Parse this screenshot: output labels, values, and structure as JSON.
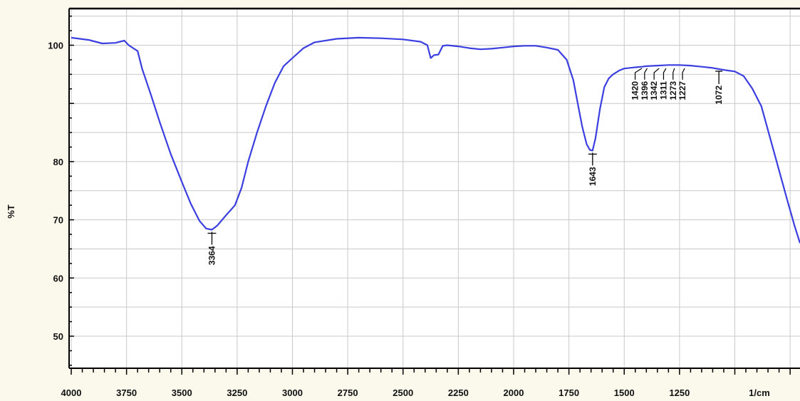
{
  "chart_data": {
    "type": "line",
    "title": "",
    "ylabel": "%T",
    "xunit_label": "1/cm",
    "xlim": [
      4000,
      700
    ],
    "ylim": [
      45,
      107
    ],
    "grid": true,
    "line_color": "#3b3fe0",
    "grid_color": "#c9c9c9",
    "x_ticks": [
      4000,
      3750,
      3500,
      3250,
      3000,
      2750,
      2500,
      2250,
      2000,
      1750,
      1500,
      1250
    ],
    "y_ticks": [
      100,
      80,
      70,
      60,
      50
    ],
    "series": [
      {
        "x": [
          4000,
          3920,
          3860,
          3800,
          3760,
          3740,
          3700,
          3680,
          3640,
          3600,
          3550,
          3500,
          3460,
          3420,
          3390,
          3364,
          3340,
          3300,
          3260,
          3230,
          3200,
          3160,
          3120,
          3080,
          3040,
          3000,
          2950,
          2900,
          2800,
          2700,
          2600,
          2500,
          2420,
          2390,
          2375,
          2360,
          2340,
          2320,
          2300,
          2250,
          2200,
          2150,
          2100,
          2050,
          2000,
          1950,
          1900,
          1850,
          1800,
          1760,
          1730,
          1710,
          1690,
          1670,
          1655,
          1643,
          1630,
          1610,
          1590,
          1570,
          1550,
          1520,
          1500,
          1450,
          1420,
          1400,
          1350,
          1300,
          1250,
          1200,
          1150,
          1100,
          1072,
          1040,
          1000,
          960,
          920,
          880,
          840,
          800,
          760,
          730,
          700
        ],
        "y": [
          101.3,
          100.9,
          100.3,
          100.4,
          100.8,
          100.0,
          99.0,
          96.0,
          91.5,
          86.8,
          81.3,
          76.5,
          72.8,
          69.8,
          68.5,
          68.3,
          69.0,
          70.8,
          72.5,
          75.5,
          80.0,
          85.0,
          89.5,
          93.5,
          96.4,
          97.8,
          99.5,
          100.5,
          101.1,
          101.3,
          101.2,
          101.0,
          100.6,
          100.0,
          97.8,
          98.3,
          98.4,
          99.9,
          100.0,
          99.8,
          99.5,
          99.3,
          99.4,
          99.6,
          99.8,
          99.9,
          99.9,
          99.6,
          99.2,
          97.5,
          94.0,
          90.0,
          86.0,
          83.0,
          82.0,
          81.9,
          84.0,
          89.0,
          92.8,
          94.3,
          95.0,
          95.7,
          96.0,
          96.2,
          96.3,
          96.4,
          96.5,
          96.6,
          96.6,
          96.5,
          96.3,
          96.1,
          95.9,
          95.7,
          95.5,
          94.7,
          92.5,
          89.5,
          84.0,
          78.5,
          73.0,
          69.0,
          66.0
        ]
      }
    ],
    "peaks": [
      {
        "x": 3364,
        "label": "3364"
      },
      {
        "x": 1643,
        "label": "1643"
      },
      {
        "x": 1420,
        "label": "1420"
      },
      {
        "x": 1396,
        "label": "1396"
      },
      {
        "x": 1342,
        "label": "1342"
      },
      {
        "x": 1311,
        "label": "1311"
      },
      {
        "x": 1273,
        "label": "1273"
      },
      {
        "x": 1227,
        "label": "1227"
      },
      {
        "x": 1072,
        "label": "1072"
      }
    ]
  }
}
